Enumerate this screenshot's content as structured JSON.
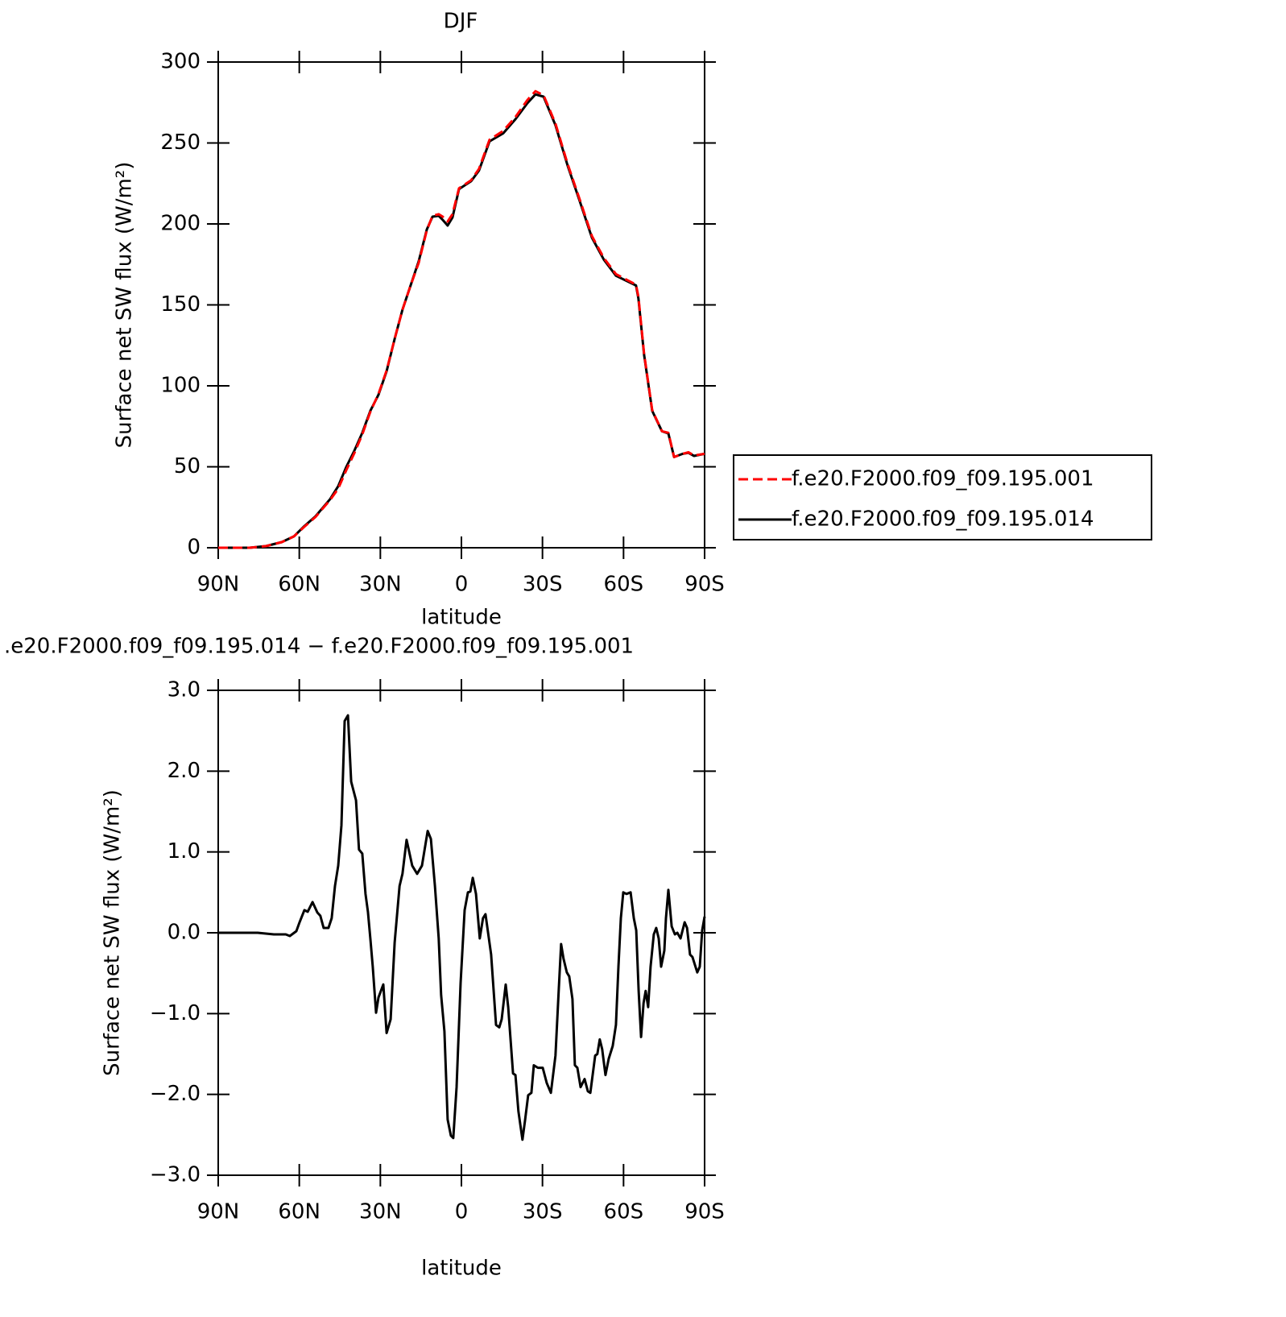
{
  "chart_data": [
    {
      "type": "line",
      "title": "DJF",
      "xlabel": "latitude",
      "ylabel": "Surface net SW flux (W/m²)",
      "x": [
        90,
        78.4,
        72.4,
        66.5,
        62,
        58.1,
        54,
        48.6,
        45.6,
        42.6,
        39.6,
        36.7,
        33.7,
        30.7,
        27.7,
        24.7,
        21.8,
        18.8,
        15.8,
        12.8,
        10.7,
        8.4,
        6.9,
        5.1,
        3.3,
        0.9,
        -3.6,
        -6.5,
        -10.4,
        -15.5,
        -20,
        -24.4,
        -27.4,
        -30.4,
        -34.8,
        -39.3,
        -43.8,
        -48.3,
        -52.7,
        -57.2,
        -64.6,
        -65.5,
        -67.6,
        -70.6,
        -74.2,
        -76.6,
        -78.7,
        -81.9,
        -84,
        -86.1,
        -90
      ],
      "series": [
        {
          "name": "f.e20.F2000.f09_f09.195.001",
          "color": "#ff0000",
          "linestyle": "dashed",
          "values": [
            0,
            0,
            1,
            3.5,
            7,
            13,
            19,
            29.5,
            36.5,
            48,
            58.5,
            70,
            84,
            95,
            109.5,
            129,
            147,
            162,
            176,
            196,
            205,
            206,
            204.5,
            201.5,
            206,
            222,
            227,
            234,
            252,
            257.5,
            266,
            276.5,
            282,
            279.5,
            262,
            237,
            215,
            192.5,
            179,
            169,
            162.5,
            155,
            120,
            85,
            72,
            71,
            56,
            58,
            59,
            57,
            58
          ]
        },
        {
          "name": "f.e20.F2000.f09_f09.195.014",
          "color": "#000000",
          "linestyle": "solid",
          "values": [
            0,
            0,
            1,
            3.5,
            7,
            13.4,
            19.4,
            30,
            38,
            50,
            60,
            71,
            84.6,
            94.5,
            109,
            129,
            147,
            162,
            177,
            196.5,
            204.5,
            205,
            202.5,
            199,
            204,
            221.5,
            226.4,
            233,
            251,
            256,
            264.7,
            274.6,
            280,
            278.6,
            261,
            236,
            214,
            191.5,
            178,
            168,
            162,
            154,
            119.4,
            84.6,
            72,
            70.6,
            56,
            58,
            58.6,
            56.7,
            58
          ]
        }
      ],
      "xlim": [
        90,
        -90
      ],
      "xticks": [
        {
          "value": 90,
          "label": "90N"
        },
        {
          "value": 60,
          "label": "60N"
        },
        {
          "value": 30,
          "label": "30N"
        },
        0,
        {
          "value": -30,
          "label": "30S"
        },
        {
          "value": -60,
          "label": "60S"
        },
        {
          "value": -90,
          "label": "90S"
        }
      ],
      "ylim": [
        0,
        300
      ],
      "yticks": [
        0,
        50,
        100,
        150,
        200,
        250,
        300
      ],
      "legend": "right"
    },
    {
      "type": "line",
      "title": ".e20.F2000.f09_f09.195.014 − f.e20.F2000.f09_f09.195.001",
      "xlabel": "latitude",
      "ylabel": "Surface net SW flux (W/m²)",
      "x": [
        90,
        75.4,
        69.4,
        65,
        63.5,
        61.1,
        59.9,
        58.1,
        56.9,
        55.1,
        53.3,
        52.2,
        51,
        49.2,
        48,
        46.8,
        45.6,
        44.4,
        43.2,
        42,
        40.8,
        39,
        37.9,
        36.7,
        35.5,
        34.6,
        33.7,
        32.8,
        31.6,
        30.7,
        28.9,
        27.7,
        26.2,
        24.7,
        22.9,
        21.8,
        20.3,
        18.2,
        16.4,
        14.6,
        12.5,
        11.3,
        9.8,
        8.4,
        7.5,
        6.3,
        5.1,
        3.9,
        3.0,
        1.8,
        0.3,
        -1.2,
        -2.4,
        -3.3,
        -4.2,
        -5.4,
        -6.8,
        -8.0,
        -8.9,
        -11,
        -12.8,
        -14,
        -14.9,
        -16.4,
        -17.3,
        -19.1,
        -20,
        -21.1,
        -22.6,
        -23.5,
        -24.7,
        -25.9,
        -26.8,
        -28.3,
        -30.1,
        -31.6,
        -33.1,
        -34.8,
        -36,
        -36.9,
        -37.8,
        -39,
        -39.9,
        -41.1,
        -42,
        -42.9,
        -44.1,
        -45.6,
        -46.8,
        -47.7,
        -49.5,
        -50.3,
        -51.2,
        -52.1,
        -53.3,
        -54.5,
        -56,
        -57.2,
        -58.1,
        -59,
        -59.9,
        -61.1,
        -62.6,
        -63.8,
        -64.7,
        -65.6,
        -66.5,
        -67.4,
        -68.2,
        -69.1,
        -70,
        -71.2,
        -72.1,
        -73,
        -73.9,
        -75.1,
        -75.7,
        -76.6,
        -77.8,
        -79,
        -79.9,
        -81.1,
        -82.6,
        -83.5,
        -84.6,
        -85.5,
        -87.3,
        -88.2,
        -89.1,
        -90
      ],
      "color": "#000000",
      "values": [
        0,
        0,
        -0.02,
        -0.02,
        -0.04,
        0.02,
        0.13,
        0.28,
        0.26,
        0.38,
        0.25,
        0.21,
        0.06,
        0.06,
        0.18,
        0.58,
        0.83,
        1.33,
        2.62,
        2.69,
        1.87,
        1.64,
        1.03,
        0.98,
        0.48,
        0.26,
        -0.07,
        -0.42,
        -0.99,
        -0.8,
        -0.64,
        -1.24,
        -1.07,
        -0.12,
        0.58,
        0.73,
        1.15,
        0.83,
        0.73,
        0.83,
        1.26,
        1.16,
        0.58,
        -0.07,
        -0.77,
        -1.22,
        -2.31,
        -2.51,
        -2.54,
        -1.91,
        -0.62,
        0.28,
        0.5,
        0.51,
        0.68,
        0.48,
        -0.07,
        0.18,
        0.23,
        -0.27,
        -1.14,
        -1.17,
        -1.07,
        -0.64,
        -0.92,
        -1.74,
        -1.76,
        -2.21,
        -2.56,
        -2.33,
        -2.01,
        -1.98,
        -1.64,
        -1.67,
        -1.67,
        -1.86,
        -1.98,
        -1.52,
        -0.72,
        -0.14,
        -0.32,
        -0.49,
        -0.54,
        -0.82,
        -1.64,
        -1.67,
        -1.91,
        -1.81,
        -1.96,
        -1.98,
        -1.52,
        -1.5,
        -1.32,
        -1.44,
        -1.76,
        -1.56,
        -1.4,
        -1.14,
        -0.42,
        0.18,
        0.5,
        0.48,
        0.5,
        0.18,
        0.03,
        -0.72,
        -1.29,
        -0.87,
        -0.72,
        -0.92,
        -0.42,
        -0.02,
        0.06,
        -0.07,
        -0.42,
        -0.22,
        0.18,
        0.53,
        0.08,
        -0.02,
        0,
        -0.07,
        0.13,
        0.06,
        -0.27,
        -0.3,
        -0.49,
        -0.42,
        0.03,
        0.2
      ],
      "xlim": [
        90,
        -90
      ],
      "xticks": [
        {
          "value": 90,
          "label": "90N"
        },
        {
          "value": 60,
          "label": "60N"
        },
        {
          "value": 30,
          "label": "30N"
        },
        0,
        {
          "value": -30,
          "label": "30S"
        },
        {
          "value": -60,
          "label": "60S"
        },
        {
          "value": -90,
          "label": "90S"
        }
      ],
      "ylim": [
        -3,
        3
      ],
      "yticks": [
        {
          "value": -3,
          "label": "−3.0"
        },
        {
          "value": -2,
          "label": "−2.0"
        },
        {
          "value": -1,
          "label": "−1.0"
        },
        {
          "value": 0,
          "label": "0.0"
        },
        {
          "value": 1,
          "label": "1.0"
        },
        {
          "value": 2,
          "label": "2.0"
        },
        {
          "value": 3,
          "label": "3.0"
        }
      ]
    }
  ]
}
